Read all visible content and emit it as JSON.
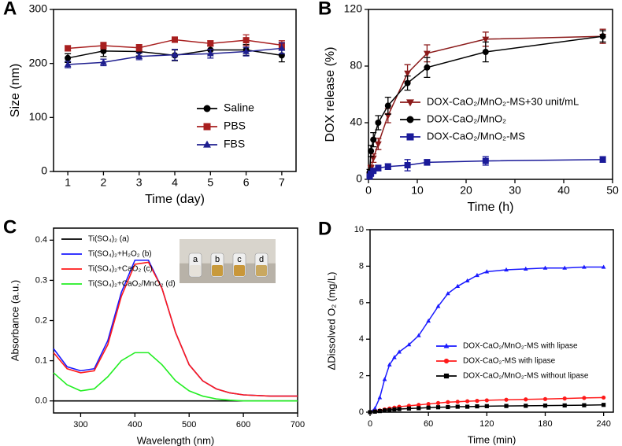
{
  "chart_data": [
    {
      "type": "line",
      "panel_label": "A",
      "x_label": "Time (day)",
      "y_label": "Size (nm)",
      "x": [
        1,
        2,
        3,
        4,
        5,
        6,
        7
      ],
      "xlim": [
        0.6,
        7.4
      ],
      "xticks": [
        1,
        2,
        3,
        4,
        5,
        6,
        7
      ],
      "ylim": [
        0,
        300
      ],
      "yticks": [
        0,
        100,
        200,
        300
      ],
      "legend_position": "center right",
      "series": [
        {
          "name": "Saline",
          "color": "#000000",
          "marker": "circle",
          "values": [
            210,
            223,
            222,
            215,
            225,
            225,
            215
          ],
          "errors": [
            8,
            10,
            8,
            10,
            8,
            10,
            12
          ]
        },
        {
          "name": "PBS",
          "color": "#a81f1f",
          "marker": "square",
          "values": [
            228,
            233,
            229,
            244,
            237,
            243,
            234
          ],
          "errors": [
            5,
            6,
            6,
            5,
            5,
            10,
            8
          ]
        },
        {
          "name": "FBS",
          "color": "#1f1f8f",
          "marker": "triangle",
          "values": [
            198,
            202,
            213,
            216,
            218,
            222,
            228
          ],
          "errors": [
            6,
            6,
            6,
            10,
            8,
            8,
            10
          ]
        }
      ]
    },
    {
      "type": "line",
      "panel_label": "B",
      "x_label": "Time (h)",
      "y_label": "DOX release (%)",
      "x": [
        0.25,
        0.5,
        1,
        2,
        4,
        8,
        12,
        24,
        48
      ],
      "xlim": [
        0,
        50
      ],
      "xticks": [
        0,
        10,
        20,
        30,
        40,
        50
      ],
      "ylim": [
        0,
        120
      ],
      "yticks": [
        0,
        40,
        80,
        120
      ],
      "legend_position": "center right",
      "series": [
        {
          "name": "DOX-CaO₂/MnO₂-MS+30 unit/mL",
          "color": "#8b1a1a",
          "marker": "triangle-down",
          "values": [
            3,
            8,
            15,
            25,
            45,
            75,
            89,
            99,
            101
          ],
          "errors": [
            1,
            2,
            3,
            4,
            5,
            6,
            6,
            5,
            5
          ]
        },
        {
          "name": "DOX-CaO₂/MnO₂",
          "color": "#000000",
          "marker": "circle",
          "values": [
            5,
            20,
            28,
            40,
            52,
            68,
            79,
            90,
            101
          ],
          "errors": [
            2,
            4,
            5,
            5,
            6,
            5,
            7,
            7,
            4
          ]
        },
        {
          "name": "DOX-CaO₂/MnO₂-MS",
          "color": "#1a1a99",
          "marker": "square",
          "values": [
            2,
            4,
            6,
            8,
            9,
            10,
            12,
            13,
            14
          ],
          "errors": [
            1,
            1,
            1,
            2,
            2,
            4,
            2,
            3,
            2
          ]
        }
      ]
    },
    {
      "type": "line",
      "panel_label": "C",
      "x_label": "Wavelength (nm)",
      "y_label": "Absorbance (a.u.)",
      "x": [
        250,
        275,
        300,
        325,
        350,
        375,
        400,
        425,
        450,
        475,
        500,
        525,
        550,
        575,
        600,
        650,
        700
      ],
      "xlim": [
        250,
        700
      ],
      "xticks": [
        300,
        400,
        500,
        600,
        700
      ],
      "ylim": [
        -0.03,
        0.43
      ],
      "yticks": [
        {
          "value": 0,
          "label": "0.0"
        },
        0.1,
        0.2,
        0.3,
        0.4
      ],
      "legend_position": "upper left",
      "inset_labels": [
        "a",
        "b",
        "c",
        "d"
      ],
      "series": [
        {
          "name": "Ti(SO₄)₂ (a)",
          "color": "#000000",
          "values": [
            0,
            0,
            0,
            0,
            0,
            0,
            0,
            0,
            0,
            0,
            0,
            0,
            0,
            0,
            0,
            0,
            0
          ]
        },
        {
          "name": "Ti(SO₄)₂+H₂O₂ (b)",
          "color": "#1a1aff",
          "values": [
            0.13,
            0.085,
            0.075,
            0.08,
            0.15,
            0.27,
            0.35,
            0.35,
            0.28,
            0.17,
            0.09,
            0.05,
            0.03,
            0.02,
            0.015,
            0.012,
            0.012
          ]
        },
        {
          "name": "Ti(SO₄)₂+CaO₂ (c)",
          "color": "#ff1a1a",
          "values": [
            0.12,
            0.08,
            0.07,
            0.075,
            0.14,
            0.26,
            0.34,
            0.345,
            0.28,
            0.17,
            0.09,
            0.05,
            0.03,
            0.02,
            0.015,
            0.012,
            0.012
          ]
        },
        {
          "name": "Ti(SO₄)₂+CaO₂/MnO₂ (d)",
          "color": "#22ee22",
          "values": [
            0.07,
            0.04,
            0.025,
            0.03,
            0.06,
            0.1,
            0.12,
            0.12,
            0.09,
            0.05,
            0.025,
            0.012,
            0.005,
            0.002,
            0,
            0,
            0
          ]
        }
      ]
    },
    {
      "type": "line",
      "panel_label": "D",
      "x_label": "Time (min)",
      "y_label": "ΔDissolved O₂ (mg/L)",
      "x": [
        0,
        5,
        10,
        15,
        20,
        25,
        30,
        40,
        50,
        60,
        70,
        80,
        90,
        100,
        110,
        120,
        140,
        160,
        180,
        200,
        220,
        240
      ],
      "xlim": [
        0,
        250
      ],
      "xticks": [
        0,
        60,
        120,
        180,
        240
      ],
      "ylim": [
        0,
        10
      ],
      "yticks": [
        0,
        2,
        4,
        6,
        8,
        10
      ],
      "legend_position": "center right",
      "series": [
        {
          "name": "DOX-CaO₂/MnO₂-MS with lipase",
          "color": "#1a1aff",
          "marker": "triangle",
          "values": [
            0,
            0.2,
            0.8,
            1.8,
            2.6,
            3.0,
            3.3,
            3.7,
            4.2,
            5.0,
            5.8,
            6.5,
            6.9,
            7.2,
            7.5,
            7.7,
            7.8,
            7.85,
            7.9,
            7.9,
            7.95,
            7.95
          ]
        },
        {
          "name": "DOX-CaO₂-MS with lipase",
          "color": "#ff1a1a",
          "marker": "circle",
          "values": [
            0,
            0.05,
            0.1,
            0.15,
            0.2,
            0.25,
            0.3,
            0.35,
            0.4,
            0.45,
            0.5,
            0.55,
            0.57,
            0.6,
            0.62,
            0.65,
            0.68,
            0.7,
            0.72,
            0.75,
            0.78,
            0.8
          ]
        },
        {
          "name": "DOX-CaO₂/MnO₂-MS without lipase",
          "color": "#000000",
          "marker": "square",
          "values": [
            0,
            0.03,
            0.06,
            0.1,
            0.12,
            0.15,
            0.17,
            0.2,
            0.22,
            0.25,
            0.27,
            0.28,
            0.3,
            0.3,
            0.32,
            0.33,
            0.34,
            0.35,
            0.36,
            0.37,
            0.38,
            0.4
          ]
        }
      ]
    }
  ]
}
